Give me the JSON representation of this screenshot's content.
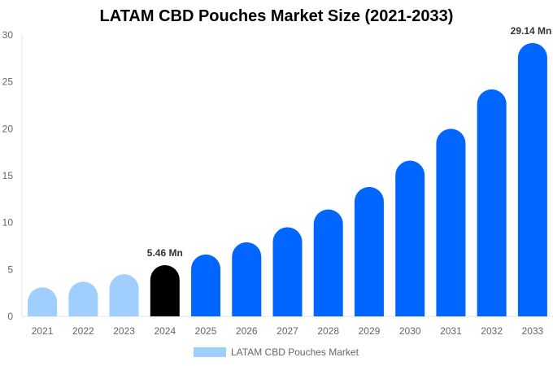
{
  "chart_data": {
    "type": "bar",
    "title": "LATAM CBD Pouches Market Size (2021-2033)",
    "categories": [
      "2021",
      "2022",
      "2023",
      "2024",
      "2025",
      "2026",
      "2027",
      "2028",
      "2029",
      "2030",
      "2031",
      "2032",
      "2033"
    ],
    "series": [
      {
        "name": "LATAM CBD Pouches Market",
        "values": [
          3.1,
          3.7,
          4.5,
          5.46,
          6.6,
          7.9,
          9.5,
          11.4,
          13.8,
          16.6,
          20.0,
          24.2,
          29.14
        ]
      }
    ],
    "data_labels": [
      {
        "category": "2024",
        "text": "5.46 Mn"
      },
      {
        "category": "2033",
        "text": "29.14 Mn"
      }
    ],
    "yticks": [
      0,
      5,
      10,
      15,
      20,
      25,
      30
    ],
    "ylim": [
      0,
      30
    ],
    "xlabel": "",
    "ylabel": "",
    "grid": false,
    "legend_position": "bottom",
    "colors": {
      "historical": "#a0cefd",
      "base_year": "#000000",
      "forecast": "#0066ff"
    }
  }
}
